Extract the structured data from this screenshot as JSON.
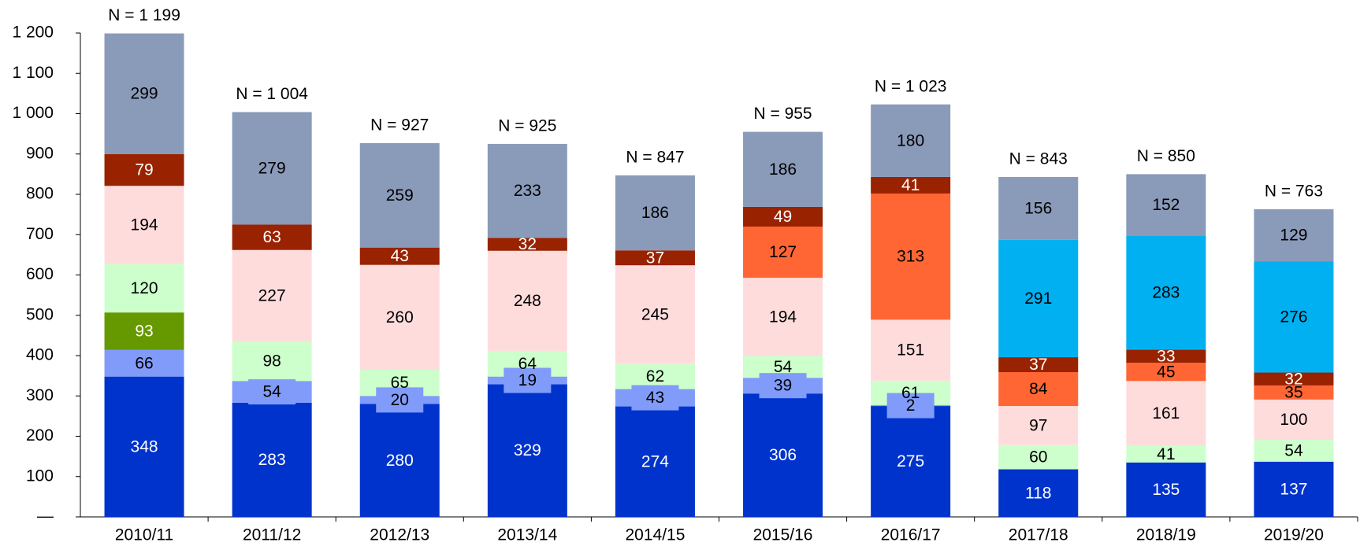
{
  "chart_data": {
    "type": "stacked_bar",
    "categories": [
      "2010/11",
      "2011/12",
      "2012/13",
      "2013/14",
      "2014/15",
      "2015/16",
      "2016/17",
      "2017/18",
      "2018/19",
      "2019/20"
    ],
    "total_labels": [
      "N = 1 199",
      "N = 1 004",
      "N = 927",
      "N = 925",
      "N = 847",
      "N = 955",
      "N = 1 023",
      "N = 843",
      "N = 850",
      "N = 763"
    ],
    "series": [
      {
        "color": "#0033cc",
        "label_color": "#ffffff",
        "values": [
          348,
          283,
          280,
          329,
          274,
          306,
          275,
          118,
          135,
          137
        ]
      },
      {
        "color": "#809bfa",
        "label_color": "#000000",
        "label_box": true,
        "values": [
          66,
          54,
          20,
          19,
          43,
          39,
          2,
          null,
          null,
          null
        ]
      },
      {
        "color": "#669900",
        "label_color": "#ffffff",
        "values": [
          93,
          null,
          null,
          null,
          null,
          null,
          null,
          null,
          null,
          null
        ]
      },
      {
        "color": "#ccffcc",
        "label_color": "#000000",
        "values": [
          120,
          98,
          65,
          64,
          62,
          54,
          61,
          60,
          41,
          54
        ]
      },
      {
        "color": "#ffdcdc",
        "label_color": "#000000",
        "values": [
          194,
          227,
          260,
          248,
          245,
          194,
          151,
          97,
          161,
          100
        ]
      },
      {
        "color": "#ff6633",
        "label_color": "#000000",
        "values": [
          null,
          null,
          null,
          null,
          null,
          127,
          313,
          84,
          45,
          35
        ]
      },
      {
        "color": "#992200",
        "label_color": "#ffffff",
        "values": [
          79,
          63,
          43,
          32,
          37,
          49,
          41,
          37,
          33,
          32
        ]
      },
      {
        "color": "#00b0f0",
        "label_color": "#000000",
        "values": [
          null,
          null,
          null,
          null,
          null,
          null,
          null,
          291,
          283,
          276
        ]
      },
      {
        "color": "#8a9ab9",
        "label_color": "#000000",
        "values": [
          299,
          279,
          259,
          233,
          186,
          186,
          180,
          156,
          152,
          129
        ]
      }
    ],
    "ylim": [
      0,
      1200
    ],
    "yticks": [
      {
        "value": 0,
        "label": "—"
      },
      100,
      200,
      300,
      400,
      500,
      600,
      700,
      800,
      900,
      {
        "value": 1000,
        "label": "1 000"
      },
      {
        "value": 1100,
        "label": "1 100"
      },
      {
        "value": 1200,
        "label": "1 200"
      }
    ]
  }
}
